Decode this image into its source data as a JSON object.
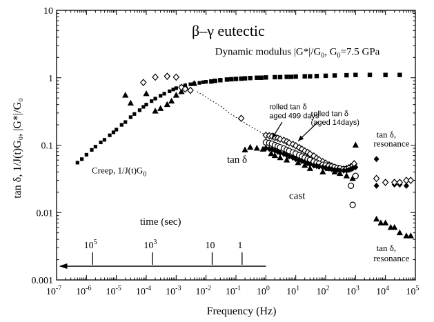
{
  "chart_data": {
    "type": "scatter",
    "title": "β–γ eutectic",
    "xlabel": "Frequency (Hz)",
    "ylabel": "tan δ, 1/J(t)G₀, |G*|/G₀",
    "x_scale": "log",
    "y_scale": "log",
    "xlim": [
      1e-07,
      100000
    ],
    "ylim": [
      0.001,
      10
    ],
    "x_ticks": [
      {
        "value": 1e-07,
        "base": "10",
        "exp": "-7"
      },
      {
        "value": 1e-06,
        "base": "10",
        "exp": "-6"
      },
      {
        "value": 1e-05,
        "base": "10",
        "exp": "-5"
      },
      {
        "value": 0.0001,
        "base": "10",
        "exp": "-4"
      },
      {
        "value": 0.001,
        "base": "10",
        "exp": "-3"
      },
      {
        "value": 0.01,
        "base": "10",
        "exp": "-2"
      },
      {
        "value": 0.1,
        "base": "10",
        "exp": "-1"
      },
      {
        "value": 1,
        "base": "10",
        "exp": "0"
      },
      {
        "value": 10,
        "base": "10",
        "exp": "1"
      },
      {
        "value": 100,
        "base": "10",
        "exp": "2"
      },
      {
        "value": 1000,
        "base": "10",
        "exp": "3"
      },
      {
        "value": 10000,
        "base": "10",
        "exp": "4"
      },
      {
        "value": 100000,
        "base": "10",
        "exp": "5"
      }
    ],
    "y_ticks": [
      {
        "value": 0.001,
        "label": "0.001"
      },
      {
        "value": 0.01,
        "label": "0.01"
      },
      {
        "value": 0.1,
        "label": "0.1"
      },
      {
        "value": 1,
        "label": "1"
      },
      {
        "value": 10,
        "label": "10"
      }
    ],
    "time_axis": {
      "label": "time (sec)",
      "arrow_from_freq": 1,
      "arrow_to_freq": 1.2e-07,
      "arrow_y": 0.0016,
      "ticks": [
        {
          "freq": 1.6e-06,
          "base": "10",
          "exp": "5"
        },
        {
          "freq": 0.00016,
          "base": "10",
          "exp": "3"
        },
        {
          "freq": 0.016,
          "base": "10",
          "exp": ""
        },
        {
          "freq": 0.16,
          "base": "1",
          "exp": ""
        }
      ]
    },
    "series": [
      {
        "marker": "square-small",
        "x": [
          5e-07,
          7e-07,
          1e-06,
          1.5e-06,
          2e-06,
          3e-06,
          4e-06,
          6e-06,
          8e-06,
          1e-05,
          1.5e-05,
          2e-05,
          3e-05,
          4e-05,
          6e-05,
          8e-05,
          0.0001,
          0.00015,
          0.0002,
          0.0003,
          0.0004,
          0.0006,
          0.0008,
          0.001,
          0.0015,
          0.002,
          0.003,
          0.004,
          0.006,
          0.008,
          0.01
        ],
        "y": [
          0.055,
          0.062,
          0.072,
          0.085,
          0.095,
          0.11,
          0.12,
          0.14,
          0.155,
          0.17,
          0.2,
          0.22,
          0.26,
          0.29,
          0.33,
          0.37,
          0.4,
          0.45,
          0.49,
          0.54,
          0.58,
          0.63,
          0.67,
          0.7,
          0.74,
          0.77,
          0.8,
          0.82,
          0.84,
          0.86,
          0.87
        ]
      },
      {
        "marker": "square",
        "x": [
          0.015,
          0.02,
          0.03,
          0.05,
          0.07,
          0.1,
          0.15,
          0.2,
          0.3,
          0.5,
          0.7,
          1,
          2,
          3,
          5,
          7,
          10,
          20,
          30,
          50,
          100,
          200,
          500,
          1000,
          3000,
          10000,
          30000
        ],
        "y": [
          0.88,
          0.9,
          0.92,
          0.94,
          0.95,
          0.96,
          0.97,
          0.98,
          0.99,
          1.0,
          1.0,
          1.01,
          1.02,
          1.02,
          1.03,
          1.03,
          1.04,
          1.05,
          1.05,
          1.06,
          1.07,
          1.08,
          1.09,
          1.1,
          1.1,
          1.1,
          1.1
        ]
      },
      {
        "marker": "triangle",
        "x": [
          2e-05,
          3e-05,
          0.0001,
          0.0002,
          0.0003,
          0.0005,
          0.0007,
          0.001,
          0.0015,
          0.002,
          0.004,
          0.2,
          0.3,
          0.5,
          0.8,
          1.5,
          2,
          3,
          5,
          8,
          12,
          20,
          30,
          50,
          80,
          120,
          200,
          300,
          500,
          800,
          1000,
          5000,
          7000,
          10000,
          15000,
          20000,
          30000,
          50000,
          70000
        ],
        "y": [
          0.55,
          0.42,
          0.58,
          0.32,
          0.35,
          0.4,
          0.45,
          0.55,
          0.62,
          0.75,
          0.82,
          0.085,
          0.093,
          0.09,
          0.087,
          0.075,
          0.07,
          0.065,
          0.06,
          0.07,
          0.055,
          0.05,
          0.045,
          0.05,
          0.04,
          0.045,
          0.04,
          0.038,
          0.035,
          0.032,
          0.1,
          0.008,
          0.007,
          0.007,
          0.006,
          0.006,
          0.005,
          0.0045,
          0.0045
        ]
      },
      {
        "marker": "diamond-open",
        "x": [
          8e-05,
          0.0002,
          0.0005,
          0.001,
          0.0015,
          0.002,
          0.003,
          0.15
        ],
        "y": [
          0.85,
          1.02,
          1.05,
          1.02,
          0.72,
          0.68,
          0.65,
          0.25
        ]
      },
      {
        "marker": "diamond-open",
        "x": [
          1,
          1.3,
          1.6,
          2,
          2.5,
          3,
          4,
          5,
          6,
          8,
          10,
          13,
          16,
          20,
          25,
          30,
          40,
          50,
          60,
          80,
          100,
          130,
          160,
          200,
          250,
          300,
          400,
          500,
          600,
          700,
          800,
          900
        ],
        "y": [
          0.14,
          0.138,
          0.135,
          0.13,
          0.127,
          0.123,
          0.118,
          0.113,
          0.108,
          0.103,
          0.098,
          0.092,
          0.087,
          0.082,
          0.078,
          0.074,
          0.069,
          0.064,
          0.061,
          0.057,
          0.054,
          0.051,
          0.049,
          0.047,
          0.045,
          0.044,
          0.044,
          0.045,
          0.046,
          0.048,
          0.05,
          0.053
        ]
      },
      {
        "marker": "circle-open",
        "x": [
          1,
          1.3,
          1.6,
          2,
          2.5,
          3,
          4,
          5,
          6,
          8,
          10,
          13,
          16,
          20,
          25,
          30,
          40,
          50,
          60,
          80,
          100,
          130,
          160,
          200,
          250,
          300,
          400,
          500,
          600,
          700,
          800,
          1000
        ],
        "y": [
          0.11,
          0.108,
          0.105,
          0.1,
          0.096,
          0.093,
          0.089,
          0.085,
          0.082,
          0.078,
          0.075,
          0.071,
          0.068,
          0.065,
          0.062,
          0.06,
          0.057,
          0.055,
          0.053,
          0.051,
          0.05,
          0.049,
          0.048,
          0.047,
          0.046,
          0.045,
          0.044,
          0.044,
          0.045,
          0.025,
          0.013,
          0.035
        ]
      },
      {
        "marker": "diamond-filled",
        "x": [
          1,
          1.3,
          1.6,
          2,
          2.5,
          3,
          4,
          5,
          6,
          8,
          10,
          13,
          16,
          20,
          25,
          30,
          40,
          50,
          60,
          80,
          100,
          130,
          160,
          200,
          250,
          300,
          400,
          500,
          600,
          700,
          800,
          1000,
          5000,
          5000,
          20000,
          30000,
          50000
        ],
        "y": [
          0.09,
          0.088,
          0.086,
          0.083,
          0.08,
          0.077,
          0.074,
          0.071,
          0.068,
          0.065,
          0.062,
          0.06,
          0.058,
          0.056,
          0.054,
          0.052,
          0.05,
          0.049,
          0.048,
          0.047,
          0.046,
          0.045,
          0.044,
          0.043,
          0.043,
          0.042,
          0.042,
          0.042,
          0.043,
          0.044,
          0.045,
          0.047,
          0.062,
          0.025,
          0.026,
          0.026,
          0.025
        ]
      },
      {
        "marker": "diamond-open",
        "x": [
          5000,
          10000,
          20000,
          30000,
          50000,
          70000
        ],
        "y": [
          0.032,
          0.028,
          0.028,
          0.028,
          0.03,
          0.03
        ]
      }
    ],
    "annotations": [
      {
        "text": "Dynamic modulus |G*|/G",
        "sub": "0",
        "tail": ", G",
        "sub2": "0",
        "tail2": "=7.5 GPa",
        "x": 0.02,
        "y": 2.2,
        "cls": "annot-big"
      },
      {
        "text": "Creep, 1/J(t)G",
        "sub": "0",
        "x": 1.5e-06,
        "y": 0.038,
        "cls": "annot-mid"
      },
      {
        "text": "tan δ",
        "x": 0.05,
        "y": 0.055,
        "cls": "annot-big"
      },
      {
        "text": "cast",
        "x": 6,
        "y": 0.016,
        "cls": "annot-big"
      },
      {
        "text": "rolled tan δ",
        "x": 1.3,
        "y": 0.34,
        "cls": "annot-small"
      },
      {
        "text": "aged 499 days",
        "x": 1.3,
        "y": 0.25,
        "cls": "annot-small"
      },
      {
        "text": "rolled tan δ",
        "x": 32,
        "y": 0.27,
        "cls": "annot-small"
      },
      {
        "text": "(aged 14days)",
        "x": 32,
        "y": 0.2,
        "cls": "annot-small"
      },
      {
        "text": "tan δ,",
        "x": 5000,
        "y": 0.13,
        "cls": "annot-mid"
      },
      {
        "text": "resonance",
        "x": 4000,
        "y": 0.095,
        "cls": "annot-mid"
      },
      {
        "text": "tan δ,",
        "x": 5000,
        "y": 0.0027,
        "cls": "annot-mid"
      },
      {
        "text": "resonance",
        "x": 4000,
        "y": 0.0019,
        "cls": "annot-mid"
      }
    ],
    "arrows": [
      {
        "from": [
          3.5,
          0.22
        ],
        "to": [
          1.6,
          0.125
        ]
      },
      {
        "from": [
          55,
          0.22
        ],
        "to": [
          12,
          0.115
        ]
      }
    ],
    "dotted_line": {
      "x": [
        0.005,
        0.008,
        0.015,
        0.03,
        0.06,
        0.15,
        0.3,
        0.6,
        1.0
      ],
      "y": [
        0.62,
        0.55,
        0.46,
        0.38,
        0.3,
        0.23,
        0.19,
        0.16,
        0.14
      ]
    },
    "grid": false,
    "legend": "none"
  }
}
